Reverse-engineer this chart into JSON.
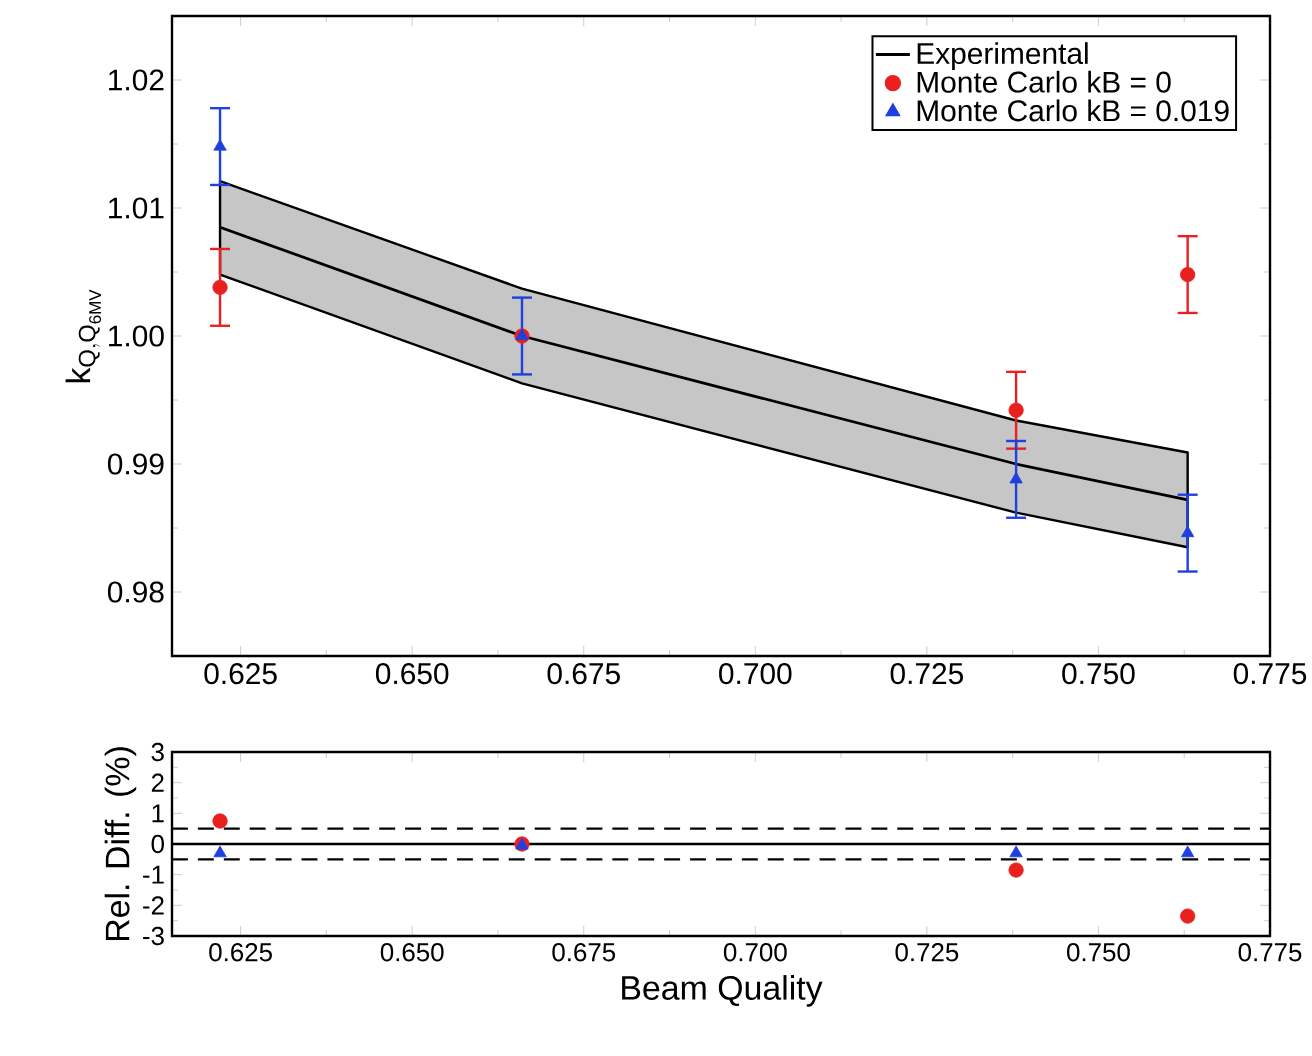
{
  "chart_data": [
    {
      "type": "scatter",
      "ylabel": "\\mathrm{k}_{\\mathrm{Q,Q}_{\\mathrm{6MV}}}",
      "xlim": [
        0.615,
        0.775
      ],
      "ylim": [
        0.975,
        1.025
      ],
      "xticks": [
        {
          "value": 0.625,
          "label": "0.625"
        },
        {
          "value": 0.65,
          "label": "0.650"
        },
        {
          "value": 0.675,
          "label": "0.675"
        },
        {
          "value": 0.7,
          "label": "0.700"
        },
        {
          "value": 0.725,
          "label": "0.725"
        },
        {
          "value": 0.75,
          "label": "0.750"
        },
        {
          "value": 0.775,
          "label": "0.775"
        }
      ],
      "yticks": [
        {
          "value": 0.98,
          "label": "0.98"
        },
        {
          "value": 0.99,
          "label": "0.99"
        },
        {
          "value": 1.0,
          "label": "1.00"
        },
        {
          "value": 1.01,
          "label": "1.01"
        },
        {
          "value": 1.02,
          "label": "1.02"
        }
      ],
      "legend": "top right",
      "grid": false,
      "series": [
        {
          "type": "line",
          "name": "Experimental",
          "color": "#000000",
          "marker": "none",
          "line_style": "solid",
          "x": [
            0.622,
            0.666,
            0.738,
            0.763
          ],
          "values": [
            1.0085,
            1.0,
            0.99,
            0.9872
          ],
          "lower": [
            1.0048,
            0.9963,
            0.9862,
            0.9835
          ],
          "upper": [
            1.0121,
            1.0037,
            0.9934,
            0.9909
          ]
        },
        {
          "name": "Monte Carlo kB = 0",
          "color": "#e8211f",
          "marker": "circle",
          "x": [
            0.622,
            0.666,
            0.738,
            0.763
          ],
          "values": [
            1.0038,
            1.0,
            0.9942,
            1.0048
          ],
          "errors": [
            0.003,
            null,
            0.003,
            0.003
          ]
        },
        {
          "name": "Monte Carlo kB = 0.019",
          "color": "#1f3fdf",
          "marker": "triangle",
          "x": [
            0.622,
            0.666,
            0.738,
            0.763
          ],
          "values": [
            1.0148,
            1.0,
            0.9888,
            0.9846
          ],
          "errors": [
            0.003,
            0.003,
            0.003,
            0.003
          ]
        }
      ]
    },
    {
      "type": "scatter",
      "xlabel": "Beam Quality",
      "ylabel": "Rel. Diff. (%)",
      "xlim": [
        0.615,
        0.775
      ],
      "ylim": [
        -3,
        3
      ],
      "xticks": [
        {
          "value": 0.625,
          "label": "0.625"
        },
        {
          "value": 0.65,
          "label": "0.650"
        },
        {
          "value": 0.675,
          "label": "0.675"
        },
        {
          "value": 0.7,
          "label": "0.700"
        },
        {
          "value": 0.725,
          "label": "0.725"
        },
        {
          "value": 0.75,
          "label": "0.750"
        },
        {
          "value": 0.775,
          "label": "0.775"
        }
      ],
      "yticks": [
        -3,
        -2,
        -1,
        0,
        1,
        2,
        3
      ],
      "legend": false,
      "grid": false,
      "ref_lines": [
        {
          "axis": "y",
          "value": 0,
          "line_style": "solid",
          "color": "#000000"
        },
        {
          "axis": "y",
          "value": 0.5,
          "line_style": "dashed",
          "color": "#000000"
        },
        {
          "axis": "y",
          "value": -0.5,
          "line_style": "dashed",
          "color": "#000000"
        }
      ],
      "series": [
        {
          "color": "#e8211f",
          "marker": "circle",
          "x": [
            0.622,
            0.666,
            0.738,
            0.763
          ],
          "values": [
            0.75,
            0.0,
            -0.85,
            -2.35
          ]
        },
        {
          "color": "#1f3fdf",
          "marker": "triangle",
          "x": [
            0.622,
            0.666,
            0.738,
            0.763
          ],
          "values": [
            -0.3,
            -0.05,
            -0.3,
            -0.3
          ]
        }
      ]
    }
  ]
}
